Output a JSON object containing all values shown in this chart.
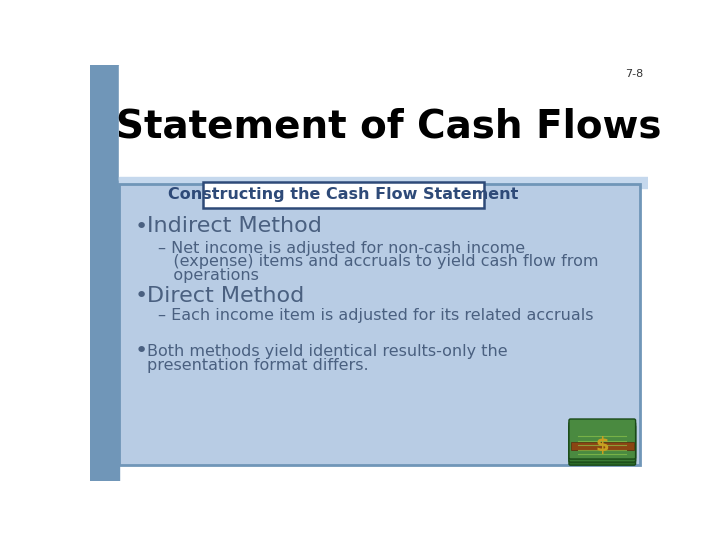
{
  "slide_number": "7-8",
  "title": "Statement of Cash Flows",
  "subtitle_box": "Constructing the Cash Flow Statement",
  "bg_color": "#ffffff",
  "left_bar_color": "#7096b8",
  "content_box_color": "#b8cce4",
  "content_box_border": "#7096b8",
  "title_color": "#000000",
  "subtitle_color": "#2e4a78",
  "bullet_color": "#4a6080",
  "bullet1": "Indirect Method",
  "sub_bullet1_line1": "– Net income is adjusted for non-cash income",
  "sub_bullet1_line2": "   (expense) items and accruals to yield cash flow from",
  "sub_bullet1_line3": "   operations",
  "bullet2": "Direct Method",
  "sub_bullet2": "– Each income item is adjusted for its related accruals",
  "bullet3_line1": "Both methods yield identical results-only the",
  "bullet3_line2": "presentation format differs."
}
